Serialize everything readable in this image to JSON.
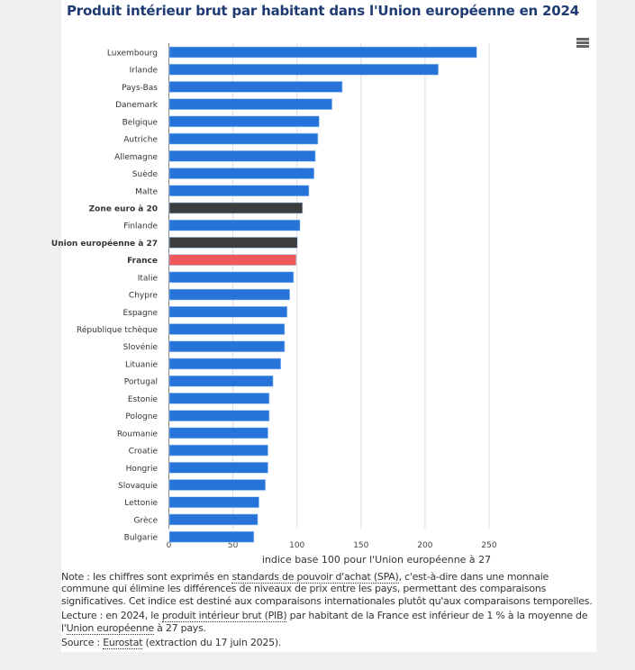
{
  "title": "Produit intérieur brut par habitant dans l'Union européenne en 2024",
  "menu_icon": "hamburger-menu-icon",
  "chart_data": {
    "type": "bar",
    "orientation": "horizontal",
    "title": "Produit intérieur brut par habitant dans l'Union européenne en 2024",
    "xlabel": "indice base 100 pour l'Union européenne à 27",
    "xlim": [
      0,
      250
    ],
    "xticks": [
      0,
      50,
      100,
      150,
      200,
      250
    ],
    "grid": true,
    "categories": [
      "Luxembourg",
      "Irlande",
      "Pays-Bas",
      "Danemark",
      "Belgique",
      "Autriche",
      "Allemagne",
      "Suède",
      "Malte",
      "Zone euro à 20",
      "Finlande",
      "Union européenne à 27",
      "France",
      "Italie",
      "Chypre",
      "Espagne",
      "République tchèque",
      "Slovénie",
      "Lituanie",
      "Portugal",
      "Estonie",
      "Pologne",
      "Roumanie",
      "Croatie",
      "Hongrie",
      "Slovaquie",
      "Lettonie",
      "Grèce",
      "Bulgarie"
    ],
    "values": [
      240,
      210,
      135,
      127,
      117,
      116,
      114,
      113,
      109,
      104,
      102,
      100,
      99,
      97,
      94,
      92,
      90,
      90,
      87,
      81,
      78,
      78,
      77,
      77,
      77,
      75,
      70,
      69,
      66
    ],
    "bold_categories": [
      "Zone euro à 20",
      "Union européenne à 27",
      "France"
    ],
    "colors": {
      "default": "#2673d9",
      "aggregate": "#3d3d3d",
      "highlight": "#f0575a"
    },
    "bar_color_keys": [
      "default",
      "default",
      "default",
      "default",
      "default",
      "default",
      "default",
      "default",
      "default",
      "aggregate",
      "default",
      "aggregate",
      "highlight",
      "default",
      "default",
      "default",
      "default",
      "default",
      "default",
      "default",
      "default",
      "default",
      "default",
      "default",
      "default",
      "default",
      "default",
      "default",
      "default"
    ]
  },
  "notes": {
    "note_prefix": "Note : les chiffres sont exprimés en ",
    "note_link": "standards de pouvoir d'achat (SPA)",
    "note_rest": ", c'est-à-dire dans une monnaie commune qui élimine les différences de niveaux de prix entre les pays, permettant des comparaisons significatives. Cet indice est destiné aux comparaisons internationales plutôt qu'aux comparaisons temporelles.",
    "lecture_prefix": "Lecture : en 2024, le ",
    "lecture_link1": "produit intérieur brut (PIB)",
    "lecture_mid": " par habitant de la France est inférieur de 1 % à la moyenne de l'",
    "lecture_link2": "Union européenne",
    "lecture_rest": " à 27 pays.",
    "source_prefix": "Source : ",
    "source_link": "Eurostat",
    "source_rest": " (extraction du 17 juin 2025)."
  }
}
